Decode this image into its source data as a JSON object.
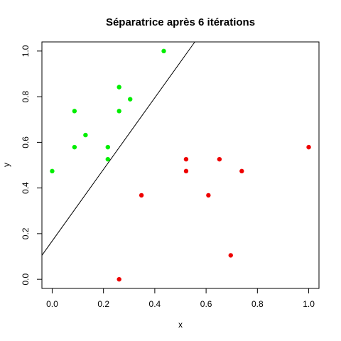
{
  "chart_data": {
    "type": "scatter",
    "title": "Séparatrice après 6 itérations",
    "xlabel": "x",
    "ylabel": "y",
    "xlim": [
      -0.04,
      1.04
    ],
    "ylim": [
      -0.04,
      1.04
    ],
    "xticks": [
      0.0,
      0.2,
      0.4,
      0.6,
      0.8,
      1.0
    ],
    "yticks": [
      0.0,
      0.2,
      0.4,
      0.6,
      0.8,
      1.0
    ],
    "xtick_labels": [
      "0.0",
      "0.2",
      "0.4",
      "0.6",
      "0.8",
      "1.0"
    ],
    "ytick_labels": [
      "0.0",
      "0.2",
      "0.4",
      "0.6",
      "0.8",
      "1.0"
    ],
    "grid": false,
    "series": [
      {
        "color": "#00ee00",
        "points": [
          [
            0.0,
            0.474
          ],
          [
            0.087,
            0.737
          ],
          [
            0.087,
            0.579
          ],
          [
            0.13,
            0.632
          ],
          [
            0.217,
            0.579
          ],
          [
            0.217,
            0.526
          ],
          [
            0.261,
            0.842
          ],
          [
            0.261,
            0.737
          ],
          [
            0.304,
            0.789
          ],
          [
            0.435,
            1.0
          ]
        ]
      },
      {
        "color": "#ee0000",
        "points": [
          [
            0.261,
            0.0
          ],
          [
            0.348,
            0.368
          ],
          [
            0.522,
            0.526
          ],
          [
            0.522,
            0.474
          ],
          [
            0.609,
            0.368
          ],
          [
            0.652,
            0.526
          ],
          [
            0.696,
            0.105
          ],
          [
            0.739,
            0.474
          ],
          [
            1.0,
            0.579
          ]
        ]
      }
    ],
    "separator_line": {
      "color": "#000000",
      "points": [
        [
          -0.04,
          0.105
        ],
        [
          0.556,
          1.04
        ]
      ]
    }
  }
}
